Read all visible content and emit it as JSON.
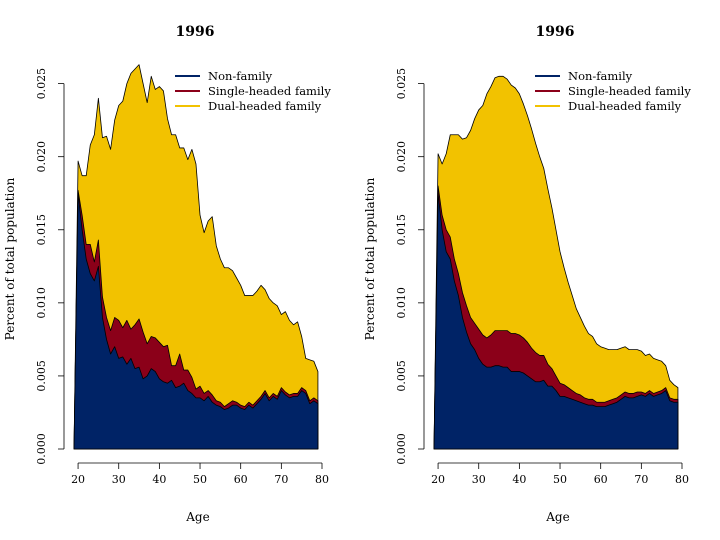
{
  "chart_data": [
    {
      "type": "area",
      "stacked": true,
      "title": "1996",
      "xlabel": "Age",
      "ylabel": "Percent of total population",
      "xlim": [
        19,
        80
      ],
      "ylim": [
        0,
        0.026
      ],
      "xticks": [
        20,
        30,
        40,
        50,
        60,
        70,
        80
      ],
      "yticks": [
        "0.000",
        "0.005",
        "0.010",
        "0.015",
        "0.020",
        "0.025"
      ],
      "legend_position": "top-right",
      "x": [
        19,
        20,
        21,
        22,
        23,
        24,
        25,
        26,
        27,
        28,
        29,
        30,
        31,
        32,
        33,
        34,
        35,
        36,
        37,
        38,
        39,
        40,
        41,
        42,
        43,
        44,
        45,
        46,
        47,
        48,
        49,
        50,
        51,
        52,
        53,
        54,
        55,
        56,
        57,
        58,
        59,
        60,
        61,
        62,
        63,
        64,
        65,
        66,
        67,
        68,
        69,
        70,
        71,
        72,
        73,
        74,
        75,
        76,
        77,
        78,
        79
      ],
      "series": [
        {
          "name": "Non-family",
          "color": "#002366",
          "values": [
            0,
            0.0175,
            0.015,
            0.013,
            0.012,
            0.0115,
            0.0125,
            0.009,
            0.0075,
            0.0065,
            0.007,
            0.0062,
            0.0063,
            0.0058,
            0.0062,
            0.0055,
            0.0056,
            0.0048,
            0.005,
            0.0055,
            0.0053,
            0.0048,
            0.0046,
            0.0045,
            0.0047,
            0.0042,
            0.0043,
            0.0045,
            0.004,
            0.0038,
            0.0035,
            0.0035,
            0.0033,
            0.0036,
            0.0032,
            0.003,
            0.0029,
            0.0027,
            0.0028,
            0.003,
            0.003,
            0.0028,
            0.0027,
            0.003,
            0.0028,
            0.0031,
            0.0034,
            0.0038,
            0.0033,
            0.0036,
            0.0034,
            0.004,
            0.0037,
            0.0035,
            0.0036,
            0.0036,
            0.004,
            0.0038,
            0.0031,
            0.0033,
            0.0031
          ]
        },
        {
          "name": "Single-headed family",
          "color": "#8b0019",
          "values": [
            0,
            0.0002,
            0.001,
            0.001,
            0.002,
            0.0013,
            0.0018,
            0.0014,
            0.0015,
            0.0016,
            0.002,
            0.0026,
            0.002,
            0.003,
            0.002,
            0.003,
            0.0033,
            0.0032,
            0.0022,
            0.0022,
            0.0023,
            0.0025,
            0.0024,
            0.0026,
            0.001,
            0.0015,
            0.0022,
            0.0009,
            0.0014,
            0.0011,
            0.0006,
            0.0008,
            0.0005,
            0.0004,
            0.0005,
            0.0003,
            0.0003,
            0.0002,
            0.0003,
            0.0003,
            0.0002,
            0.0002,
            0.0002,
            0.0002,
            0.0002,
            0.0002,
            0.0002,
            0.0002,
            0.0002,
            0.0002,
            0.0002,
            0.0002,
            0.0002,
            0.0002,
            0.0002,
            0.0002,
            0.0002,
            0.0002,
            0.0002,
            0.0002,
            0.0002
          ]
        },
        {
          "name": "Dual-headed family",
          "color": "#f2c200",
          "values": [
            0,
            0.002,
            0.0027,
            0.0047,
            0.0068,
            0.0087,
            0.0097,
            0.0109,
            0.0124,
            0.0124,
            0.0135,
            0.0147,
            0.0155,
            0.0162,
            0.0175,
            0.0175,
            0.0174,
            0.017,
            0.0165,
            0.0178,
            0.017,
            0.0175,
            0.0175,
            0.0155,
            0.0158,
            0.0158,
            0.0141,
            0.0152,
            0.0144,
            0.0156,
            0.0154,
            0.0117,
            0.011,
            0.0116,
            0.0122,
            0.0106,
            0.0098,
            0.0095,
            0.0093,
            0.0089,
            0.0085,
            0.0082,
            0.0076,
            0.0073,
            0.0075,
            0.0075,
            0.0076,
            0.0069,
            0.0068,
            0.0062,
            0.0062,
            0.005,
            0.0055,
            0.0051,
            0.0047,
            0.0049,
            0.0035,
            0.0022,
            0.0028,
            0.0025,
            0.002
          ]
        }
      ]
    },
    {
      "type": "area",
      "stacked": true,
      "title": "1996",
      "xlabel": "Age",
      "ylabel": "Percent of total population",
      "xlim": [
        19,
        80
      ],
      "ylim": [
        0,
        0.026
      ],
      "xticks": [
        20,
        30,
        40,
        50,
        60,
        70,
        80
      ],
      "yticks": [
        "0.000",
        "0.005",
        "0.010",
        "0.015",
        "0.020",
        "0.025"
      ],
      "legend_position": "top-right",
      "x": [
        19,
        20,
        21,
        22,
        23,
        24,
        25,
        26,
        27,
        28,
        29,
        30,
        31,
        32,
        33,
        34,
        35,
        36,
        37,
        38,
        39,
        40,
        41,
        42,
        43,
        44,
        45,
        46,
        47,
        48,
        49,
        50,
        51,
        52,
        53,
        54,
        55,
        56,
        57,
        58,
        59,
        60,
        61,
        62,
        63,
        64,
        65,
        66,
        67,
        68,
        69,
        70,
        71,
        72,
        73,
        74,
        75,
        76,
        77,
        78,
        79
      ],
      "series": [
        {
          "name": "Non-family",
          "color": "#002366",
          "values": [
            0,
            0.0175,
            0.015,
            0.0135,
            0.013,
            0.0115,
            0.0105,
            0.009,
            0.008,
            0.0072,
            0.0068,
            0.0062,
            0.0058,
            0.0056,
            0.0056,
            0.0057,
            0.0057,
            0.0056,
            0.0056,
            0.0053,
            0.0053,
            0.0053,
            0.0052,
            0.005,
            0.0048,
            0.0046,
            0.0046,
            0.0047,
            0.0043,
            0.0043,
            0.004,
            0.0036,
            0.0036,
            0.0035,
            0.0034,
            0.0033,
            0.0032,
            0.0031,
            0.003,
            0.003,
            0.0029,
            0.0029,
            0.0029,
            0.003,
            0.0031,
            0.0032,
            0.0034,
            0.0036,
            0.0035,
            0.0035,
            0.0036,
            0.0037,
            0.0036,
            0.0038,
            0.0036,
            0.0037,
            0.0038,
            0.004,
            0.0033,
            0.0032,
            0.0032
          ]
        },
        {
          "name": "Single-headed family",
          "color": "#8b0019",
          "values": [
            0,
            0.0005,
            0.001,
            0.0015,
            0.0015,
            0.0015,
            0.0015,
            0.0017,
            0.0018,
            0.0018,
            0.0018,
            0.002,
            0.002,
            0.002,
            0.0022,
            0.0024,
            0.0024,
            0.0025,
            0.0025,
            0.0026,
            0.0026,
            0.0025,
            0.0024,
            0.0023,
            0.0021,
            0.002,
            0.0018,
            0.0017,
            0.0015,
            0.0012,
            0.001,
            0.0009,
            0.0008,
            0.0007,
            0.0006,
            0.0005,
            0.0005,
            0.0004,
            0.0004,
            0.0004,
            0.0003,
            0.0003,
            0.0003,
            0.0003,
            0.0003,
            0.0003,
            0.0003,
            0.0003,
            0.0003,
            0.0003,
            0.0003,
            0.0002,
            0.0002,
            0.0002,
            0.0002,
            0.0002,
            0.0002,
            0.0002,
            0.0002,
            0.0002,
            0.0002
          ]
        },
        {
          "name": "Dual-headed family",
          "color": "#f2c200",
          "values": [
            0,
            0.0022,
            0.0035,
            0.0052,
            0.007,
            0.0085,
            0.0095,
            0.0105,
            0.0115,
            0.0128,
            0.014,
            0.015,
            0.0157,
            0.0167,
            0.017,
            0.0173,
            0.0174,
            0.0174,
            0.0172,
            0.017,
            0.0168,
            0.0165,
            0.016,
            0.0155,
            0.015,
            0.0143,
            0.0136,
            0.0128,
            0.012,
            0.011,
            0.01,
            0.009,
            0.008,
            0.0072,
            0.0065,
            0.0058,
            0.0053,
            0.0049,
            0.0045,
            0.0043,
            0.004,
            0.0038,
            0.0037,
            0.0035,
            0.0034,
            0.0033,
            0.0032,
            0.0031,
            0.003,
            0.003,
            0.0029,
            0.0028,
            0.0026,
            0.0025,
            0.0024,
            0.0022,
            0.002,
            0.0015,
            0.0012,
            0.001,
            0.0008
          ]
        }
      ]
    }
  ]
}
